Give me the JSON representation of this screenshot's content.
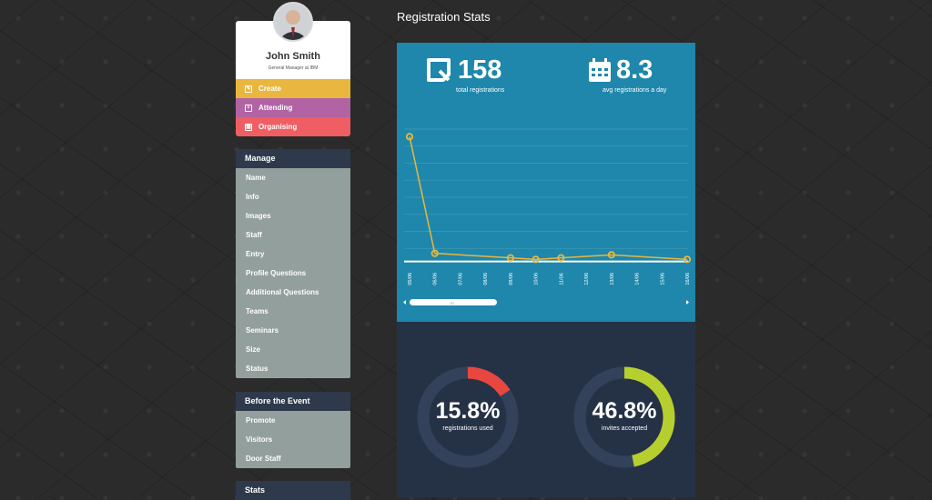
{
  "profile": {
    "name": "John Smith",
    "role": "General Manager at IBM"
  },
  "actions": [
    {
      "label": "Create",
      "icon": "edit-icon",
      "color": "#e9b73f"
    },
    {
      "label": "Attending",
      "icon": "plus-square-icon",
      "color": "#b163a3"
    },
    {
      "label": "Organising",
      "icon": "calendar-icon",
      "color": "#ef5e63"
    }
  ],
  "manage": {
    "title": "Manage",
    "items": [
      "Name",
      "Info",
      "Images",
      "Staff",
      "Entry",
      "Profile Questions",
      "Additional Questions",
      "Teams",
      "Seminars",
      "Size",
      "Status"
    ]
  },
  "before_event": {
    "title": "Before the Event",
    "items": [
      "Promote",
      "Visitors",
      "Door Staff"
    ]
  },
  "stats_section": {
    "title": "Stats"
  },
  "page": {
    "title": "Registration Stats"
  },
  "kpis": {
    "total": {
      "value": "158",
      "label": "total registrations",
      "icon": "ticket-icon"
    },
    "avg": {
      "value": "8.3",
      "label": "avg registrations a day",
      "icon": "calendar-icon"
    }
  },
  "gauges": [
    {
      "value": "15.8%",
      "label": "registrations used",
      "fraction": 0.158,
      "color": "#e8473f"
    },
    {
      "value": "46.8%",
      "label": "invites accepted",
      "fraction": 0.468,
      "color": "#b6cf2e"
    }
  ],
  "chart_data": {
    "type": "line",
    "categories": [
      "05/06",
      "06/06",
      "07/06",
      "08/06",
      "09/06",
      "10/06",
      "11/06",
      "12/06",
      "13/06",
      "14/06",
      "15/06",
      "16/06"
    ],
    "series": [
      {
        "values": [
          80,
          3,
          null,
          null,
          0,
          -1,
          0,
          null,
          2,
          null,
          null,
          -1
        ],
        "color": "#e9b73f"
      }
    ],
    "ylim": [
      -5,
      85
    ],
    "grid": true
  },
  "scrollbar": {
    "grip": "III"
  }
}
